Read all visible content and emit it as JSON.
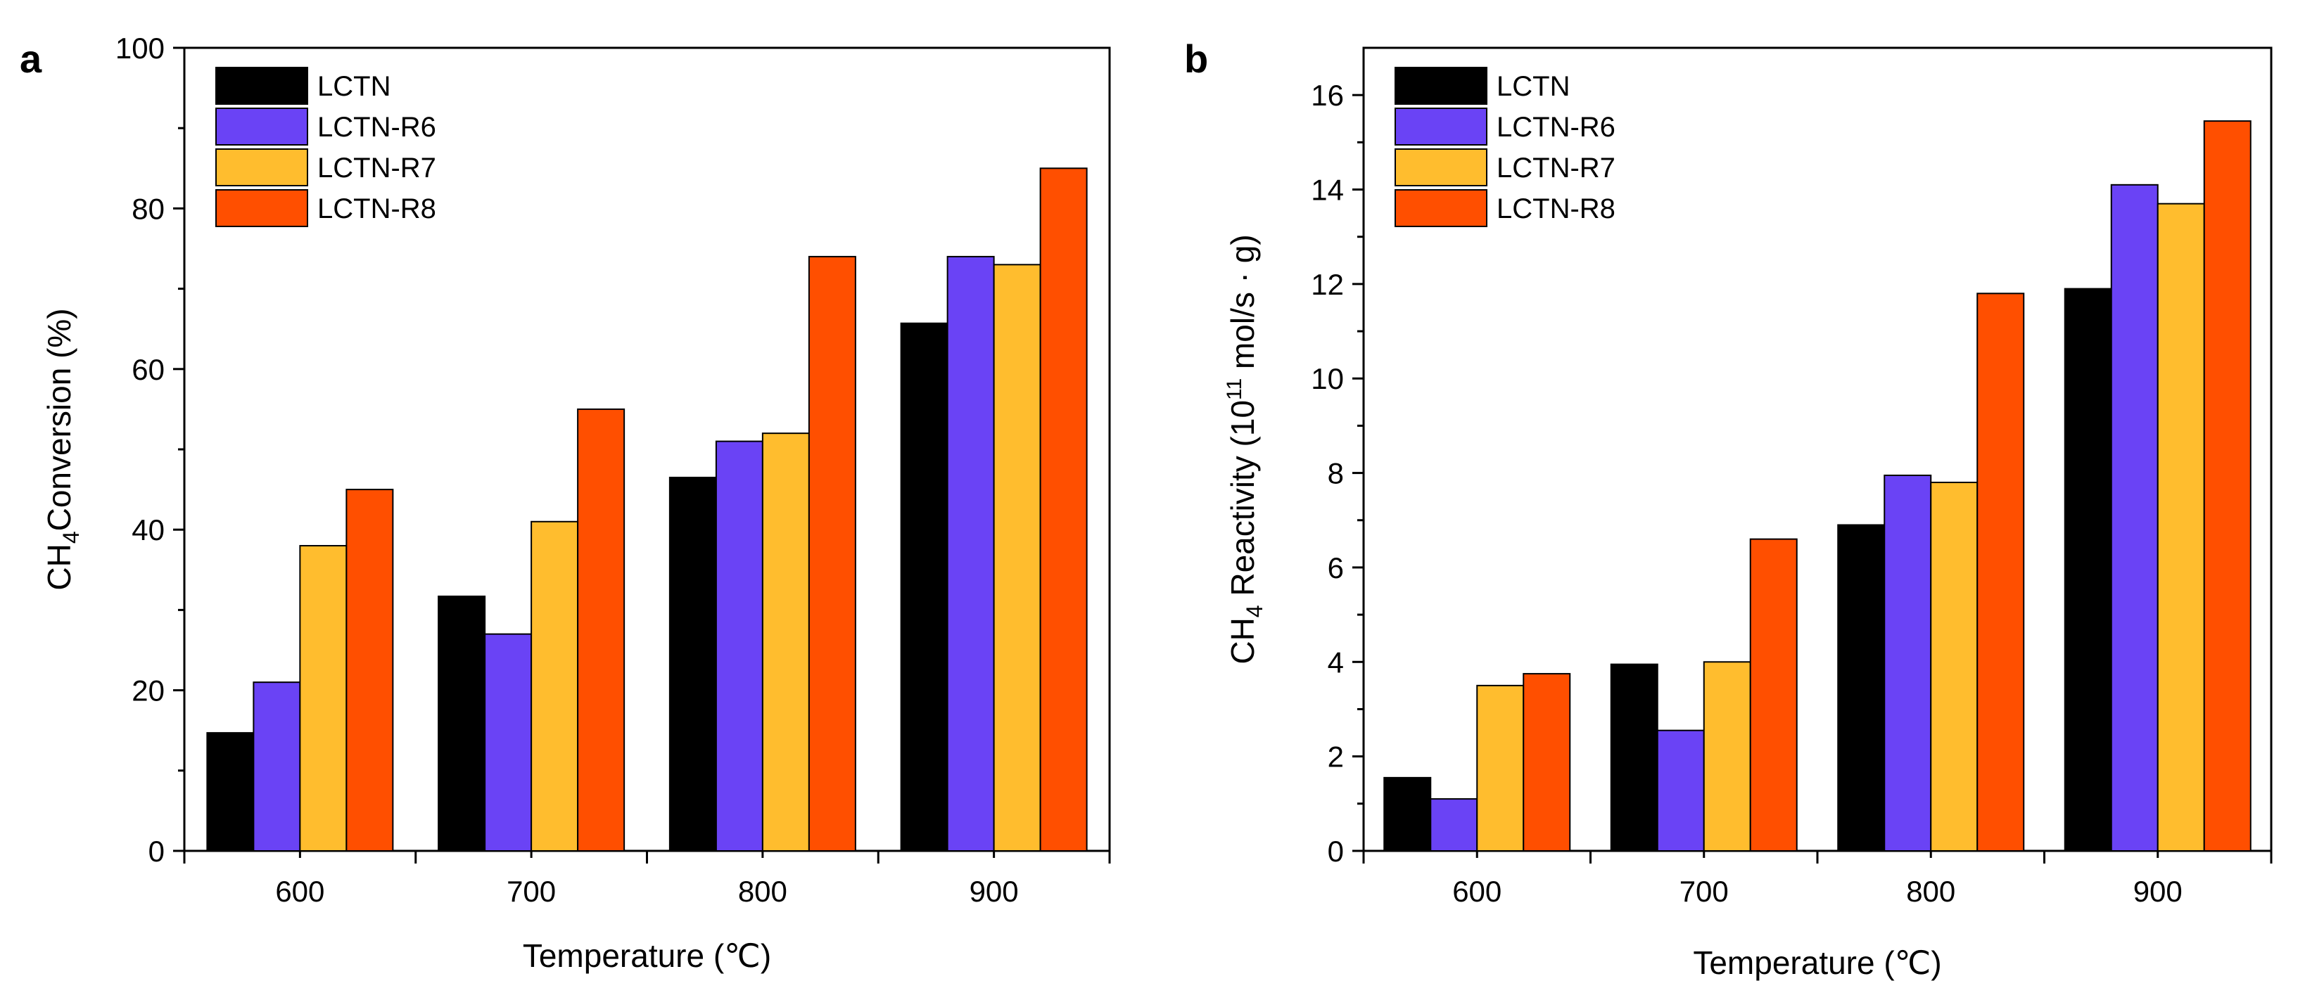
{
  "chart_data": [
    {
      "type": "bar",
      "panel_label": "a",
      "categories": [
        "600",
        "700",
        "800",
        "900"
      ],
      "series": [
        {
          "name": "LCTN",
          "color": "#000000",
          "values": [
            14.7,
            31.7,
            46.5,
            65.7
          ]
        },
        {
          "name": "LCTN-R6",
          "color": "#6a43f5",
          "values": [
            21,
            27,
            51,
            74
          ]
        },
        {
          "name": "LCTN-R7",
          "color": "#ffbd2e",
          "values": [
            38,
            41,
            52,
            73
          ]
        },
        {
          "name": "LCTN-R8",
          "color": "#ff4f00",
          "values": [
            45,
            55,
            74,
            85
          ]
        }
      ],
      "xlabel": "Temperature (℃)",
      "ylabel": {
        "prefix": "CH",
        "sub": "4",
        "suffix": "Conversion (%)"
      },
      "ylim": [
        0,
        100
      ],
      "yticks": [
        0,
        20,
        40,
        60,
        80,
        100
      ],
      "legend_position": "top-left"
    },
    {
      "type": "bar",
      "panel_label": "b",
      "categories": [
        "600",
        "700",
        "800",
        "900"
      ],
      "series": [
        {
          "name": "LCTN",
          "color": "#000000",
          "values": [
            1.55,
            3.95,
            6.9,
            11.9
          ]
        },
        {
          "name": "LCTN-R6",
          "color": "#6a43f5",
          "values": [
            1.1,
            2.55,
            7.95,
            14.1
          ]
        },
        {
          "name": "LCTN-R7",
          "color": "#ffbd2e",
          "values": [
            3.5,
            4.0,
            7.8,
            13.7
          ]
        },
        {
          "name": "LCTN-R8",
          "color": "#ff4f00",
          "values": [
            3.75,
            6.6,
            11.8,
            15.45
          ]
        }
      ],
      "xlabel": "Temperature (℃)",
      "ylabel": {
        "prefix": "CH",
        "sub": "4",
        "mid": " Reactivity (10",
        "sup": "11",
        "suffix": " mol/s · g)"
      },
      "ylim": [
        0,
        17
      ],
      "yticks": [
        0,
        2,
        4,
        6,
        8,
        10,
        12,
        14,
        16
      ],
      "legend_position": "top-left"
    }
  ]
}
